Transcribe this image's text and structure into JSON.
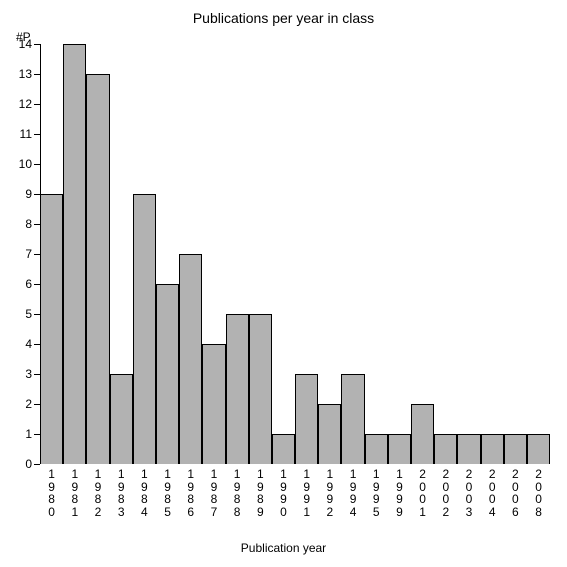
{
  "chart": {
    "type": "bar",
    "title": "Publications per year in class",
    "ylabel": "#P",
    "xlabel": "Publication year",
    "title_fontsize": 14,
    "label_fontsize": 12,
    "tick_fontsize": 12,
    "background_color": "#ffffff",
    "bar_color": "#b2b2b2",
    "bar_border_color": "#000000",
    "axis_color": "#000000",
    "text_color": "#000000",
    "ylim": [
      0,
      14
    ],
    "ytick_step": 1,
    "bar_width": 1.0,
    "categories": [
      "1980",
      "1981",
      "1982",
      "1983",
      "1984",
      "1985",
      "1986",
      "1987",
      "1988",
      "1989",
      "1990",
      "1991",
      "1992",
      "1994",
      "1995",
      "1999",
      "2001",
      "2002",
      "2003",
      "2004",
      "2006",
      "2008"
    ],
    "values": [
      9,
      14,
      13,
      3,
      9,
      6,
      7,
      4,
      5,
      5,
      1,
      3,
      2,
      3,
      1,
      1,
      2,
      1,
      1,
      1,
      1,
      1
    ]
  }
}
